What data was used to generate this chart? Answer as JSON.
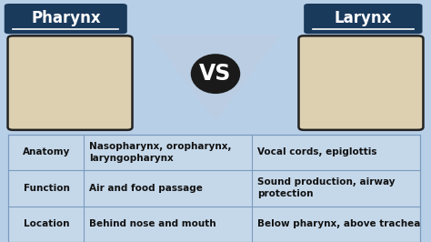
{
  "background_color": "#b8cfe8",
  "title_left": "Pharynx",
  "title_right": "Larynx",
  "title_bg_color": "#1a3a5c",
  "title_text_color": "#ffffff",
  "vs_text": "VS",
  "vs_bg_color": "#1a1a1a",
  "vs_text_color": "#ffffff",
  "table_rows": [
    {
      "label": "Location",
      "pharynx": "Behind nose and mouth",
      "larynx": "Below pharynx, above trachea"
    },
    {
      "label": "Function",
      "pharynx": "Air and food passage",
      "larynx": "Sound production, airway\nprotection"
    },
    {
      "label": "Anatomy",
      "pharynx": "Nasopharynx, oropharynx,\nlaryngopharynx",
      "larynx": "Vocal cords, epiglottis"
    }
  ],
  "table_line_color": "#7a9abf",
  "table_bg_color": "#c5d8ea",
  "font_size_title": 12,
  "font_size_table": 7.5,
  "font_size_vs": 17
}
